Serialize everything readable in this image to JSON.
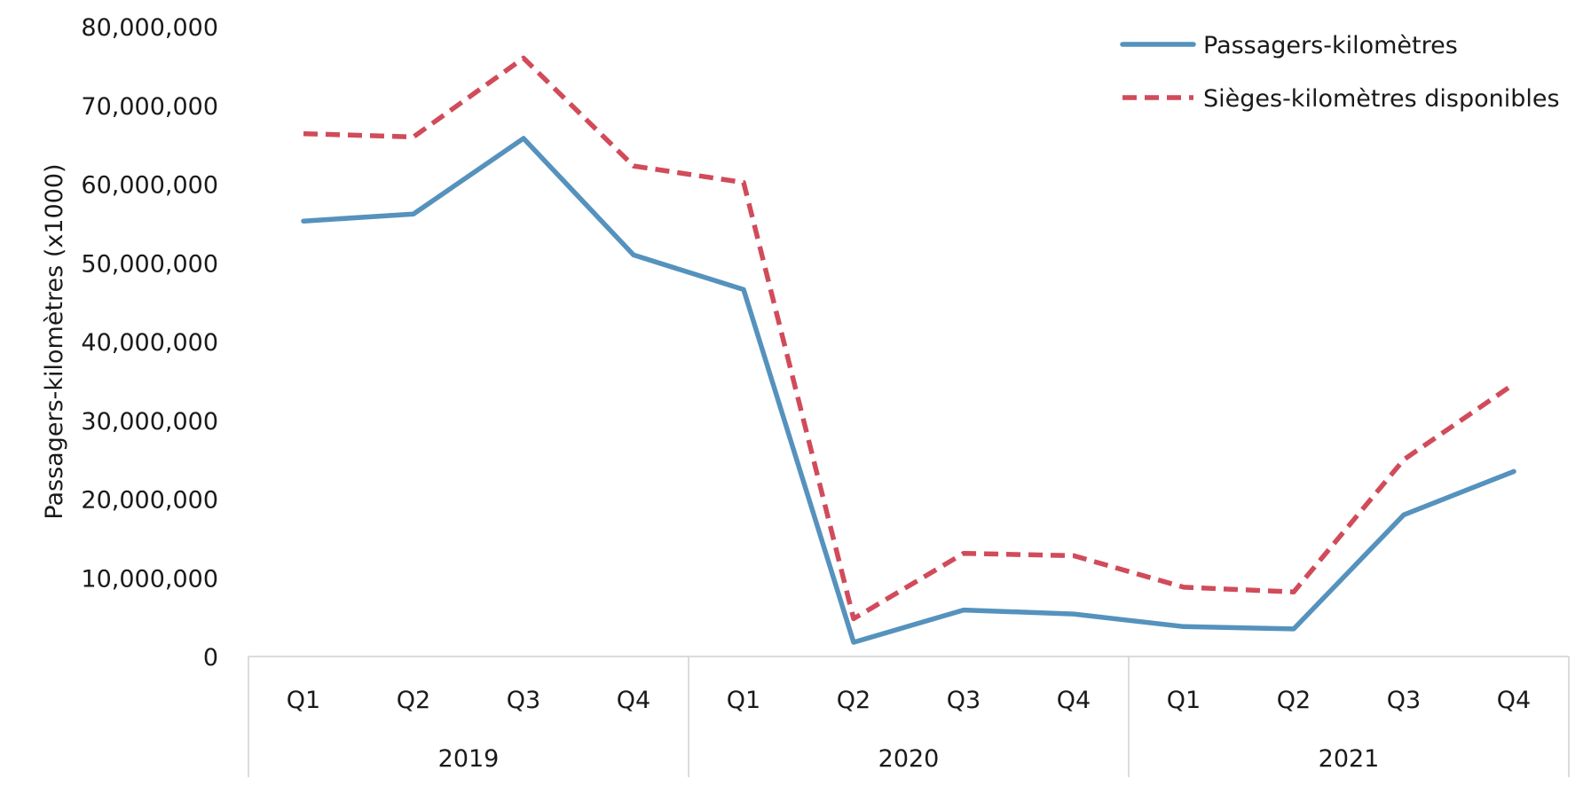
{
  "chart_data": {
    "type": "line",
    "ylabel": "Passagers-kilomètres  (x1000)",
    "ylim": [
      0,
      80000000
    ],
    "y_ticks": [
      "0",
      "10,000,000",
      "20,000,000",
      "30,000,000",
      "40,000,000",
      "50,000,000",
      "60,000,000",
      "70,000,000",
      "80,000,000"
    ],
    "y_tick_values": [
      0,
      10000000,
      20000000,
      30000000,
      40000000,
      50000000,
      60000000,
      70000000,
      80000000
    ],
    "grid": false,
    "legend_position": "top-right",
    "categories": [
      "Q1",
      "Q2",
      "Q3",
      "Q4",
      "Q1",
      "Q2",
      "Q3",
      "Q4",
      "Q1",
      "Q2",
      "Q3",
      "Q4"
    ],
    "groups": [
      {
        "label": "2019",
        "count": 4
      },
      {
        "label": "2020",
        "count": 4
      },
      {
        "label": "2021",
        "count": 4
      }
    ],
    "series": [
      {
        "name": "Passagers-kilomètres",
        "color": "#5592bd",
        "style": "solid",
        "values": [
          55300000,
          56200000,
          65800000,
          51000000,
          46600000,
          1800000,
          5900000,
          5400000,
          3800000,
          3500000,
          18000000,
          23500000
        ]
      },
      {
        "name": "Sièges-kilomètres disponibles",
        "color": "#d14b5a",
        "style": "dashed",
        "values": [
          66400000,
          66000000,
          76000000,
          62300000,
          60200000,
          4800000,
          13100000,
          12800000,
          8800000,
          8200000,
          25000000,
          34600000
        ]
      }
    ]
  }
}
